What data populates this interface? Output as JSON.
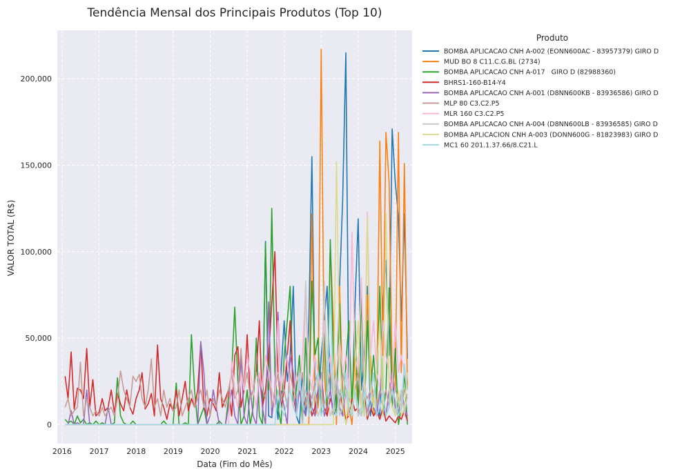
{
  "chart_data": {
    "type": "line",
    "title": "Tendência Mensal dos Principais Produtos (Top 10)",
    "xlabel": "Data (Fim do Mês)",
    "ylabel": "VALOR TOTAL (R$)",
    "xlim": [
      "2015-11-15",
      "2025-06-15"
    ],
    "ylim": [
      -11000,
      228000
    ],
    "x_ticks": [
      {
        "date": "2016-01-01",
        "label": "2016"
      },
      {
        "date": "2017-01-01",
        "label": "2017"
      },
      {
        "date": "2018-01-01",
        "label": "2018"
      },
      {
        "date": "2019-01-01",
        "label": "2019"
      },
      {
        "date": "2020-01-01",
        "label": "2020"
      },
      {
        "date": "2021-01-01",
        "label": "2021"
      },
      {
        "date": "2022-01-01",
        "label": "2022"
      },
      {
        "date": "2023-01-01",
        "label": "2023"
      },
      {
        "date": "2024-01-01",
        "label": "2024"
      },
      {
        "date": "2025-01-01",
        "label": "2025"
      }
    ],
    "y_ticks": [
      {
        "value": 0,
        "label": "0"
      },
      {
        "value": 50000,
        "label": "50,000"
      },
      {
        "value": 100000,
        "label": "100,000"
      },
      {
        "value": 150000,
        "label": "150,000"
      },
      {
        "value": 200000,
        "label": "200,000"
      }
    ],
    "grid": true,
    "legend": {
      "title": "Produto",
      "placement": "outside-right"
    },
    "start_month": "2016-01",
    "series": [
      {
        "name": "BOMBA APLICACAO CNH A-002 (EONN600AC - 83957379) GIRO D",
        "color": "#1f77b4",
        "values": [
          0,
          0,
          0,
          0,
          0,
          0,
          0,
          0,
          0,
          0,
          0,
          0,
          0,
          0,
          0,
          0,
          0,
          0,
          0,
          0,
          0,
          0,
          0,
          0,
          0,
          0,
          0,
          0,
          0,
          0,
          0,
          0,
          0,
          0,
          0,
          0,
          0,
          0,
          0,
          0,
          0,
          0,
          0,
          0,
          0,
          0,
          0,
          0,
          0,
          0,
          0,
          0,
          0,
          0,
          0,
          0,
          0,
          0,
          0,
          0,
          0,
          0,
          0,
          0,
          0,
          106000,
          5000,
          4000,
          20000,
          3000,
          30000,
          60000,
          25000,
          40000,
          80000,
          5000,
          0,
          30000,
          5000,
          60000,
          155000,
          20000,
          10000,
          40000,
          60000,
          80000,
          20000,
          5000,
          10000,
          80000,
          130000,
          215000,
          20000,
          5000,
          70000,
          119000,
          20000,
          40000,
          80000,
          5000,
          20000,
          10000,
          5000,
          70000,
          95000,
          40000,
          171000,
          140000,
          120000,
          60000,
          122000,
          38000
        ]
      },
      {
        "name": "MUD BO 8 C11.C.G.BL (2734)",
        "color": "#ff7f0e",
        "values": [
          0,
          0,
          0,
          0,
          0,
          0,
          0,
          0,
          0,
          0,
          0,
          0,
          0,
          0,
          0,
          0,
          0,
          0,
          0,
          0,
          0,
          0,
          0,
          0,
          0,
          0,
          0,
          0,
          0,
          0,
          0,
          0,
          0,
          0,
          0,
          0,
          0,
          0,
          0,
          0,
          0,
          0,
          0,
          0,
          0,
          0,
          0,
          0,
          0,
          0,
          0,
          0,
          0,
          0,
          0,
          0,
          0,
          0,
          0,
          0,
          0,
          0,
          0,
          0,
          0,
          0,
          0,
          0,
          0,
          0,
          0,
          0,
          0,
          0,
          0,
          0,
          0,
          0,
          0,
          0,
          122000,
          5000,
          10000,
          217000,
          30000,
          5000,
          104000,
          60000,
          0,
          80000,
          20000,
          0,
          10000,
          0,
          40000,
          5000,
          80000,
          20000,
          75000,
          40000,
          5000,
          10000,
          164000,
          40000,
          169000,
          140000,
          30000,
          20000,
          169000,
          30000,
          151000,
          20000
        ]
      },
      {
        "name": "BOMBA APLICACAO CNH A-017   GIRO D (82988360)",
        "color": "#2ca02c",
        "values": [
          3000,
          1000,
          2000,
          0,
          5000,
          1000,
          3000,
          0,
          1000,
          0,
          2000,
          0,
          1000,
          0,
          0,
          0,
          1000,
          27000,
          5000,
          1000,
          0,
          0,
          2000,
          0,
          0,
          0,
          0,
          0,
          0,
          0,
          0,
          0,
          2000,
          0,
          0,
          0,
          24000,
          0,
          0,
          1000,
          0,
          52000,
          20000,
          0,
          5000,
          10000,
          0,
          0,
          0,
          0,
          2000,
          0,
          0,
          15000,
          30000,
          68000,
          25000,
          0,
          5000,
          20000,
          0,
          10000,
          50000,
          5000,
          0,
          105000,
          20000,
          125000,
          30000,
          10000,
          0,
          40000,
          60000,
          80000,
          10000,
          20000,
          40000,
          0,
          50000,
          5000,
          83000,
          40000,
          50000,
          5000,
          60000,
          10000,
          107000,
          40000,
          5000,
          70000,
          5000,
          35000,
          60000,
          10000,
          60000,
          10000,
          75000,
          5000,
          60000,
          20000,
          40000,
          15000,
          80000,
          5000,
          20000,
          79000,
          10000,
          44000,
          0,
          10000,
          30000,
          0
        ]
      },
      {
        "name": "BHRS1-160-B14-Y4",
        "color": "#d62728",
        "values": [
          28000,
          15000,
          42000,
          9000,
          21000,
          20000,
          15000,
          44000,
          10000,
          26000,
          5000,
          7000,
          15000,
          8000,
          10000,
          20000,
          7000,
          18000,
          12000,
          8000,
          20000,
          10000,
          6000,
          15000,
          20000,
          30000,
          9000,
          12000,
          18000,
          5000,
          46000,
          15000,
          10000,
          3000,
          12000,
          8000,
          20000,
          5000,
          15000,
          25000,
          8000,
          15000,
          10000,
          20000,
          47000,
          10000,
          5000,
          15000,
          12000,
          8000,
          30000,
          10000,
          15000,
          20000,
          5000,
          40000,
          45000,
          10000,
          20000,
          52000,
          15000,
          20000,
          30000,
          60000,
          10000,
          20000,
          40000,
          70000,
          100000,
          30000,
          10000,
          20000,
          40000,
          60000,
          20000,
          5000,
          30000,
          10000,
          15000,
          20000,
          5000,
          10000,
          20000,
          30000,
          10000,
          5000,
          15000,
          10000,
          5000,
          20000,
          10000,
          3000,
          5000,
          15000,
          8000,
          10000,
          5000,
          20000,
          3000,
          10000,
          5000,
          8000,
          3000,
          10000,
          2000,
          5000,
          3000,
          1000,
          5000,
          3000,
          8000,
          2000
        ]
      },
      {
        "name": "BOMBA APLICACAO CNH A-001 (D8NN600KB - 83936586) GIRO D",
        "color": "#9467bd",
        "values": [
          0,
          0,
          8000,
          0,
          1000,
          0,
          0,
          20000,
          0,
          0,
          0,
          0,
          0,
          0,
          10000,
          0,
          0,
          0,
          0,
          0,
          0,
          0,
          0,
          0,
          0,
          0,
          0,
          0,
          0,
          0,
          0,
          0,
          0,
          0,
          0,
          0,
          0,
          0,
          0,
          0,
          0,
          0,
          0,
          0,
          48000,
          30000,
          0,
          5000,
          20000,
          10000,
          0,
          0,
          0,
          10000,
          20000,
          5000,
          0,
          40000,
          5000,
          0,
          20000,
          5000,
          0,
          30000,
          10000,
          0,
          71000,
          5000,
          20000,
          65000,
          20000,
          10000,
          0,
          40000,
          30000,
          5000,
          20000,
          10000,
          5000,
          20000,
          10000,
          5000,
          20000,
          30000,
          5000,
          10000,
          20000,
          5000,
          30000,
          10000,
          5000,
          20000,
          5000,
          10000,
          20000,
          5000,
          10000,
          30000,
          5000,
          20000,
          10000,
          5000,
          20000,
          10000,
          5000,
          20000,
          30000,
          10000,
          5000,
          20000,
          10000,
          5000
        ]
      },
      {
        "name": "MLP 80 C3.C2.P5",
        "color": "#c49c94",
        "values": [
          10000,
          15000,
          5000,
          8000,
          10000,
          36000,
          5000,
          15000,
          10000,
          5000,
          8000,
          5000,
          10000,
          5000,
          8000,
          10000,
          5000,
          15000,
          31000,
          20000,
          15000,
          10000,
          28000,
          25000,
          29000,
          15000,
          10000,
          20000,
          38000,
          10000,
          15000,
          5000,
          20000,
          10000,
          15000,
          8000,
          10000,
          20000,
          5000,
          10000,
          15000,
          20000,
          10000,
          15000,
          20000,
          10000,
          20000,
          5000,
          15000,
          10000,
          20000,
          15000,
          10000,
          20000,
          30000,
          15000,
          20000,
          44000,
          20000,
          30000,
          15000,
          20000,
          30000,
          25000,
          20000,
          15000,
          30000,
          10000,
          20000,
          30000,
          15000,
          20000,
          10000,
          30000,
          20000,
          15000,
          20000,
          30000,
          10000,
          20000,
          15000,
          25000,
          30000,
          20000,
          10000,
          20000,
          30000,
          15000,
          20000,
          10000,
          30000,
          20000,
          15000,
          10000,
          20000,
          30000,
          10000,
          20000,
          15000,
          20000,
          30000,
          10000,
          20000,
          15000,
          20000,
          10000,
          30000,
          20000,
          15000,
          10000,
          20000,
          15000
        ]
      },
      {
        "name": "MLR 160 C3.C2.P5",
        "color": "#f7b6d2",
        "values": [
          0,
          0,
          0,
          0,
          0,
          0,
          0,
          0,
          0,
          0,
          0,
          0,
          0,
          0,
          0,
          0,
          0,
          0,
          0,
          0,
          0,
          0,
          0,
          0,
          0,
          0,
          0,
          0,
          0,
          0,
          0,
          0,
          0,
          0,
          0,
          0,
          0,
          0,
          0,
          0,
          0,
          0,
          0,
          0,
          0,
          0,
          0,
          0,
          0,
          0,
          0,
          0,
          0,
          0,
          37000,
          20000,
          10000,
          30000,
          20000,
          40000,
          30000,
          20000,
          10000,
          30000,
          20000,
          40000,
          30000,
          20000,
          10000,
          60000,
          20000,
          30000,
          40000,
          20000,
          10000,
          30000,
          20000,
          40000,
          80000,
          30000,
          20000,
          40000,
          30000,
          20000,
          60000,
          30000,
          40000,
          20000,
          30000,
          50000,
          30000,
          40000,
          20000,
          111000,
          40000,
          30000,
          85000,
          20000,
          123000,
          40000,
          60000,
          30000,
          20000,
          60000,
          40000,
          30000,
          20000,
          60000,
          30000,
          40000,
          30000,
          20000
        ]
      },
      {
        "name": "BOMBA APLICACAO CNH A-004 (D8NN600LB - 83936585) GIRO D",
        "color": "#c7c7c7",
        "values": [
          0,
          0,
          0,
          0,
          0,
          0,
          0,
          0,
          0,
          0,
          0,
          0,
          0,
          0,
          0,
          0,
          0,
          0,
          0,
          0,
          0,
          0,
          0,
          0,
          0,
          0,
          0,
          0,
          0,
          0,
          0,
          0,
          0,
          0,
          0,
          0,
          0,
          0,
          0,
          0,
          0,
          0,
          0,
          0,
          0,
          0,
          0,
          0,
          0,
          0,
          0,
          0,
          0,
          0,
          0,
          0,
          0,
          0,
          0,
          0,
          0,
          0,
          0,
          0,
          0,
          0,
          0,
          0,
          0,
          0,
          0,
          0,
          0,
          0,
          0,
          0,
          0,
          0,
          83000,
          5000,
          10000,
          20000,
          5000,
          10000,
          83000,
          20000,
          5000,
          10000,
          30000,
          5000,
          10000,
          20000,
          5000,
          10000,
          20000,
          5000,
          10000,
          30000,
          5000,
          10000,
          20000,
          5000,
          10000,
          20000,
          5000,
          10000,
          20000,
          5000,
          10000,
          20000,
          5000,
          18000
        ]
      },
      {
        "name": "BOMBA APLICACION CNH A-003 (DONN600G - 81823983) GIRO D",
        "color": "#dbdb8d",
        "values": [
          0,
          0,
          0,
          0,
          0,
          0,
          0,
          0,
          0,
          0,
          0,
          0,
          0,
          0,
          0,
          0,
          0,
          0,
          0,
          0,
          0,
          0,
          0,
          0,
          0,
          0,
          0,
          0,
          0,
          0,
          0,
          0,
          0,
          0,
          0,
          0,
          0,
          0,
          0,
          0,
          0,
          0,
          0,
          0,
          0,
          0,
          0,
          0,
          0,
          0,
          0,
          0,
          0,
          0,
          0,
          0,
          0,
          0,
          0,
          0,
          0,
          0,
          0,
          0,
          0,
          0,
          0,
          0,
          0,
          0,
          0,
          0,
          0,
          0,
          0,
          0,
          0,
          0,
          0,
          0,
          0,
          0,
          0,
          0,
          0,
          0,
          0,
          0,
          152000,
          40000,
          10000,
          0,
          20000,
          5000,
          30000,
          60000,
          10000,
          5000,
          120000,
          20000,
          10000,
          30000,
          60000,
          5000,
          122000,
          20000,
          10000,
          5000,
          20000,
          5000,
          10000,
          30000
        ]
      },
      {
        "name": "MC1 60 201.1.37.66/8.C21.L",
        "color": "#9edae5",
        "values": [
          0,
          0,
          0,
          0,
          0,
          0,
          0,
          0,
          0,
          0,
          0,
          0,
          0,
          0,
          0,
          0,
          0,
          0,
          0,
          0,
          0,
          0,
          0,
          0,
          0,
          0,
          0,
          0,
          0,
          0,
          0,
          0,
          0,
          0,
          0,
          0,
          0,
          0,
          0,
          0,
          0,
          0,
          0,
          0,
          0,
          0,
          0,
          0,
          0,
          0,
          0,
          0,
          0,
          0,
          0,
          0,
          0,
          0,
          0,
          0,
          0,
          0,
          0,
          0,
          0,
          0,
          0,
          0,
          0,
          20000,
          10000,
          5000,
          15000,
          20000,
          10000,
          5000,
          30000,
          10000,
          20000,
          5000,
          10000,
          20000,
          30000,
          5000,
          10000,
          20000,
          78000,
          10000,
          5000,
          20000,
          15000,
          30000,
          10000,
          5000,
          20000,
          10000,
          5000,
          20000,
          10000,
          15000,
          30000,
          5000,
          10000,
          20000,
          5000,
          10000,
          20000,
          15000,
          5000,
          10000,
          35000,
          20000
        ]
      }
    ]
  }
}
